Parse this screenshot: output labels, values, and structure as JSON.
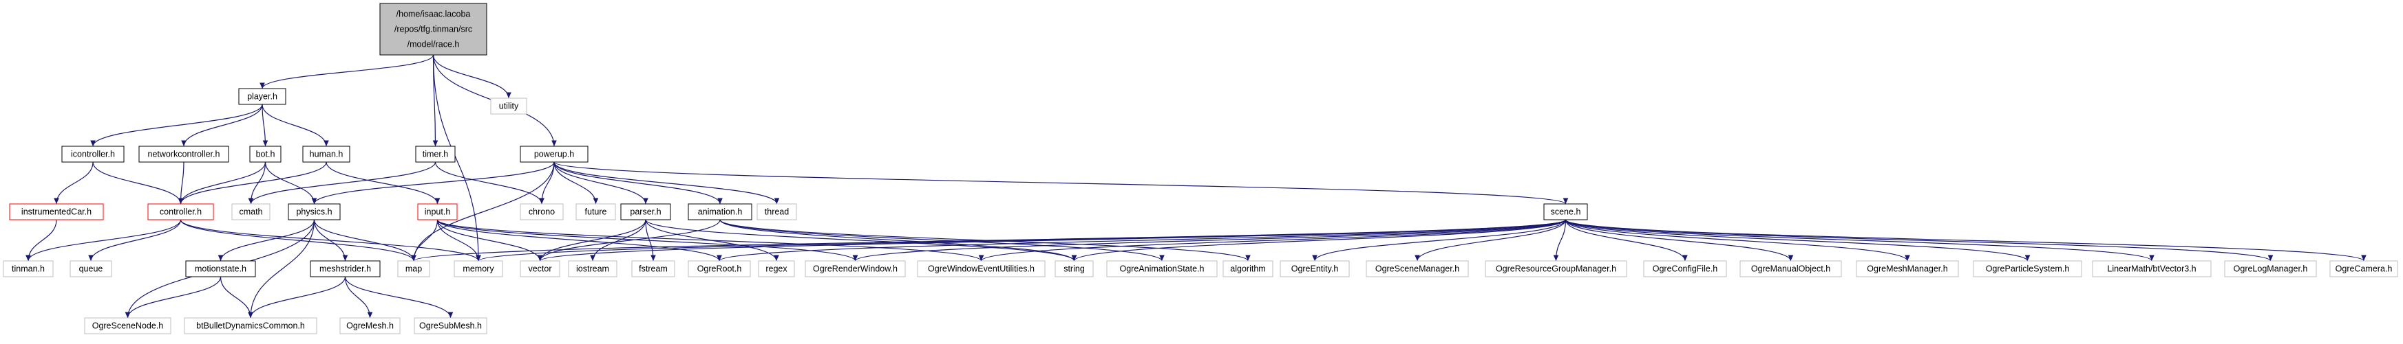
{
  "nodes": [
    {
      "id": "race",
      "lines": [
        "/home/isaac.lacoba",
        "/repos/tfg.tinman/src",
        "/model/race.h"
      ],
      "style": "root"
    },
    {
      "id": "player",
      "lines": [
        "player.h"
      ],
      "style": "normal"
    },
    {
      "id": "utility",
      "lines": [
        "utility"
      ],
      "style": "external"
    },
    {
      "id": "icontroller",
      "lines": [
        "icontroller.h"
      ],
      "style": "normal"
    },
    {
      "id": "networkcontroller",
      "lines": [
        "networkcontroller.h"
      ],
      "style": "normal"
    },
    {
      "id": "bot",
      "lines": [
        "bot.h"
      ],
      "style": "normal"
    },
    {
      "id": "human",
      "lines": [
        "human.h"
      ],
      "style": "normal"
    },
    {
      "id": "timer",
      "lines": [
        "timer.h"
      ],
      "style": "normal"
    },
    {
      "id": "powerup",
      "lines": [
        "powerup.h"
      ],
      "style": "normal"
    },
    {
      "id": "instrumentedcar",
      "lines": [
        "instrumentedCar.h"
      ],
      "style": "truncated"
    },
    {
      "id": "controller",
      "lines": [
        "controller.h"
      ],
      "style": "truncated"
    },
    {
      "id": "cmath",
      "lines": [
        "cmath"
      ],
      "style": "external"
    },
    {
      "id": "physics",
      "lines": [
        "physics.h"
      ],
      "style": "normal"
    },
    {
      "id": "input",
      "lines": [
        "input.h"
      ],
      "style": "truncated"
    },
    {
      "id": "chrono",
      "lines": [
        "chrono"
      ],
      "style": "external"
    },
    {
      "id": "future",
      "lines": [
        "future"
      ],
      "style": "external"
    },
    {
      "id": "parser",
      "lines": [
        "parser.h"
      ],
      "style": "normal"
    },
    {
      "id": "animation",
      "lines": [
        "animation.h"
      ],
      "style": "normal"
    },
    {
      "id": "thread",
      "lines": [
        "thread"
      ],
      "style": "external"
    },
    {
      "id": "scene",
      "lines": [
        "scene.h"
      ],
      "style": "normal"
    },
    {
      "id": "tinman",
      "lines": [
        "tinman.h"
      ],
      "style": "external"
    },
    {
      "id": "queue",
      "lines": [
        "queue"
      ],
      "style": "external"
    },
    {
      "id": "motionstate",
      "lines": [
        "motionstate.h"
      ],
      "style": "normal"
    },
    {
      "id": "meshstrider",
      "lines": [
        "meshstrider.h"
      ],
      "style": "normal"
    },
    {
      "id": "map",
      "lines": [
        "map"
      ],
      "style": "external"
    },
    {
      "id": "memory",
      "lines": [
        "memory"
      ],
      "style": "external"
    },
    {
      "id": "vector",
      "lines": [
        "vector"
      ],
      "style": "external"
    },
    {
      "id": "iostream",
      "lines": [
        "iostream"
      ],
      "style": "external"
    },
    {
      "id": "fstream",
      "lines": [
        "fstream"
      ],
      "style": "external"
    },
    {
      "id": "ogreroot",
      "lines": [
        "OgreRoot.h"
      ],
      "style": "external"
    },
    {
      "id": "regex",
      "lines": [
        "regex"
      ],
      "style": "external"
    },
    {
      "id": "ogrerenderwindow",
      "lines": [
        "OgreRenderWindow.h"
      ],
      "style": "external"
    },
    {
      "id": "ogrewindowevent",
      "lines": [
        "OgreWindowEventUtilities.h"
      ],
      "style": "external"
    },
    {
      "id": "string",
      "lines": [
        "string"
      ],
      "style": "external"
    },
    {
      "id": "ogreanimationstate",
      "lines": [
        "OgreAnimationState.h"
      ],
      "style": "external"
    },
    {
      "id": "algorithm",
      "lines": [
        "algorithm"
      ],
      "style": "external"
    },
    {
      "id": "ogreentity",
      "lines": [
        "OgreEntity.h"
      ],
      "style": "external"
    },
    {
      "id": "ogrescenemanager",
      "lines": [
        "OgreSceneManager.h"
      ],
      "style": "external"
    },
    {
      "id": "ogreresourcegroupmanager",
      "lines": [
        "OgreResourceGroupManager.h"
      ],
      "style": "external"
    },
    {
      "id": "ogreconfigfile",
      "lines": [
        "OgreConfigFile.h"
      ],
      "style": "external"
    },
    {
      "id": "ogremanualobject",
      "lines": [
        "OgreManualObject.h"
      ],
      "style": "external"
    },
    {
      "id": "ogremeshmanager",
      "lines": [
        "OgreMeshManager.h"
      ],
      "style": "external"
    },
    {
      "id": "ogreparticlesystem",
      "lines": [
        "OgreParticleSystem.h"
      ],
      "style": "external"
    },
    {
      "id": "linearmath",
      "lines": [
        "LinearMath/btVector3.h"
      ],
      "style": "external"
    },
    {
      "id": "ogrelogmanager",
      "lines": [
        "OgreLogManager.h"
      ],
      "style": "external"
    },
    {
      "id": "ogrecamera",
      "lines": [
        "OgreCamera.h"
      ],
      "style": "external"
    },
    {
      "id": "ogrescenenode",
      "lines": [
        "OgreSceneNode.h"
      ],
      "style": "external"
    },
    {
      "id": "btbullet",
      "lines": [
        "btBulletDynamicsCommon.h"
      ],
      "style": "external"
    },
    {
      "id": "ogremesh",
      "lines": [
        "OgreMesh.h"
      ],
      "style": "external"
    },
    {
      "id": "ogresubmesh",
      "lines": [
        "OgreSubMesh.h"
      ],
      "style": "external"
    }
  ],
  "edges": [
    [
      "race",
      "player"
    ],
    [
      "race",
      "utility"
    ],
    [
      "race",
      "timer"
    ],
    [
      "race",
      "powerup"
    ],
    [
      "race",
      "memory"
    ],
    [
      "player",
      "icontroller"
    ],
    [
      "player",
      "networkcontroller"
    ],
    [
      "player",
      "bot"
    ],
    [
      "player",
      "human"
    ],
    [
      "icontroller",
      "instrumentedcar"
    ],
    [
      "icontroller",
      "controller"
    ],
    [
      "networkcontroller",
      "controller"
    ],
    [
      "bot",
      "controller"
    ],
    [
      "bot",
      "cmath"
    ],
    [
      "bot",
      "physics"
    ],
    [
      "human",
      "controller"
    ],
    [
      "human",
      "input"
    ],
    [
      "timer",
      "cmath"
    ],
    [
      "timer",
      "chrono"
    ],
    [
      "powerup",
      "physics"
    ],
    [
      "powerup",
      "chrono"
    ],
    [
      "powerup",
      "future"
    ],
    [
      "powerup",
      "parser"
    ],
    [
      "powerup",
      "animation"
    ],
    [
      "powerup",
      "thread"
    ],
    [
      "powerup",
      "scene"
    ],
    [
      "powerup",
      "map"
    ],
    [
      "instrumentedcar",
      "tinman"
    ],
    [
      "controller",
      "tinman"
    ],
    [
      "controller",
      "queue"
    ],
    [
      "controller",
      "map"
    ],
    [
      "controller",
      "memory"
    ],
    [
      "physics",
      "ogrescenenode"
    ],
    [
      "physics",
      "motionstate"
    ],
    [
      "physics",
      "meshstrider"
    ],
    [
      "physics",
      "btbullet"
    ],
    [
      "physics",
      "map"
    ],
    [
      "motionstate",
      "ogrescenenode"
    ],
    [
      "motionstate",
      "btbullet"
    ],
    [
      "meshstrider",
      "btbullet"
    ],
    [
      "meshstrider",
      "ogremesh"
    ],
    [
      "meshstrider",
      "ogresubmesh"
    ],
    [
      "input",
      "map"
    ],
    [
      "input",
      "memory"
    ],
    [
      "input",
      "vector"
    ],
    [
      "input",
      "ogreroot"
    ],
    [
      "input",
      "ogrerenderwindow"
    ],
    [
      "input",
      "ogrewindowevent"
    ],
    [
      "parser",
      "vector"
    ],
    [
      "parser",
      "iostream"
    ],
    [
      "parser",
      "fstream"
    ],
    [
      "parser",
      "regex"
    ],
    [
      "parser",
      "string"
    ],
    [
      "animation",
      "vector"
    ],
    [
      "animation",
      "ogreanimationstate"
    ],
    [
      "animation",
      "string"
    ],
    [
      "animation",
      "algorithm"
    ],
    [
      "scene",
      "map"
    ],
    [
      "scene",
      "memory"
    ],
    [
      "scene",
      "vector"
    ],
    [
      "scene",
      "ogreroot"
    ],
    [
      "scene",
      "ogrerenderwindow"
    ],
    [
      "scene",
      "ogrewindowevent"
    ],
    [
      "scene",
      "string"
    ],
    [
      "scene",
      "ogreentity"
    ],
    [
      "scene",
      "ogrescenemanager"
    ],
    [
      "scene",
      "ogreresourcegroupmanager"
    ],
    [
      "scene",
      "ogreconfigfile"
    ],
    [
      "scene",
      "ogremanualobject"
    ],
    [
      "scene",
      "ogremeshmanager"
    ],
    [
      "scene",
      "ogreparticlesystem"
    ],
    [
      "scene",
      "linearmath"
    ],
    [
      "scene",
      "ogrelogmanager"
    ],
    [
      "scene",
      "ogrecamera"
    ]
  ],
  "colors": {
    "edge": "#191970",
    "root_fill": "#bfbfbf",
    "normal_border": "#000000",
    "truncated_border": "#ff0000",
    "external_border": "#bfbfbf"
  }
}
